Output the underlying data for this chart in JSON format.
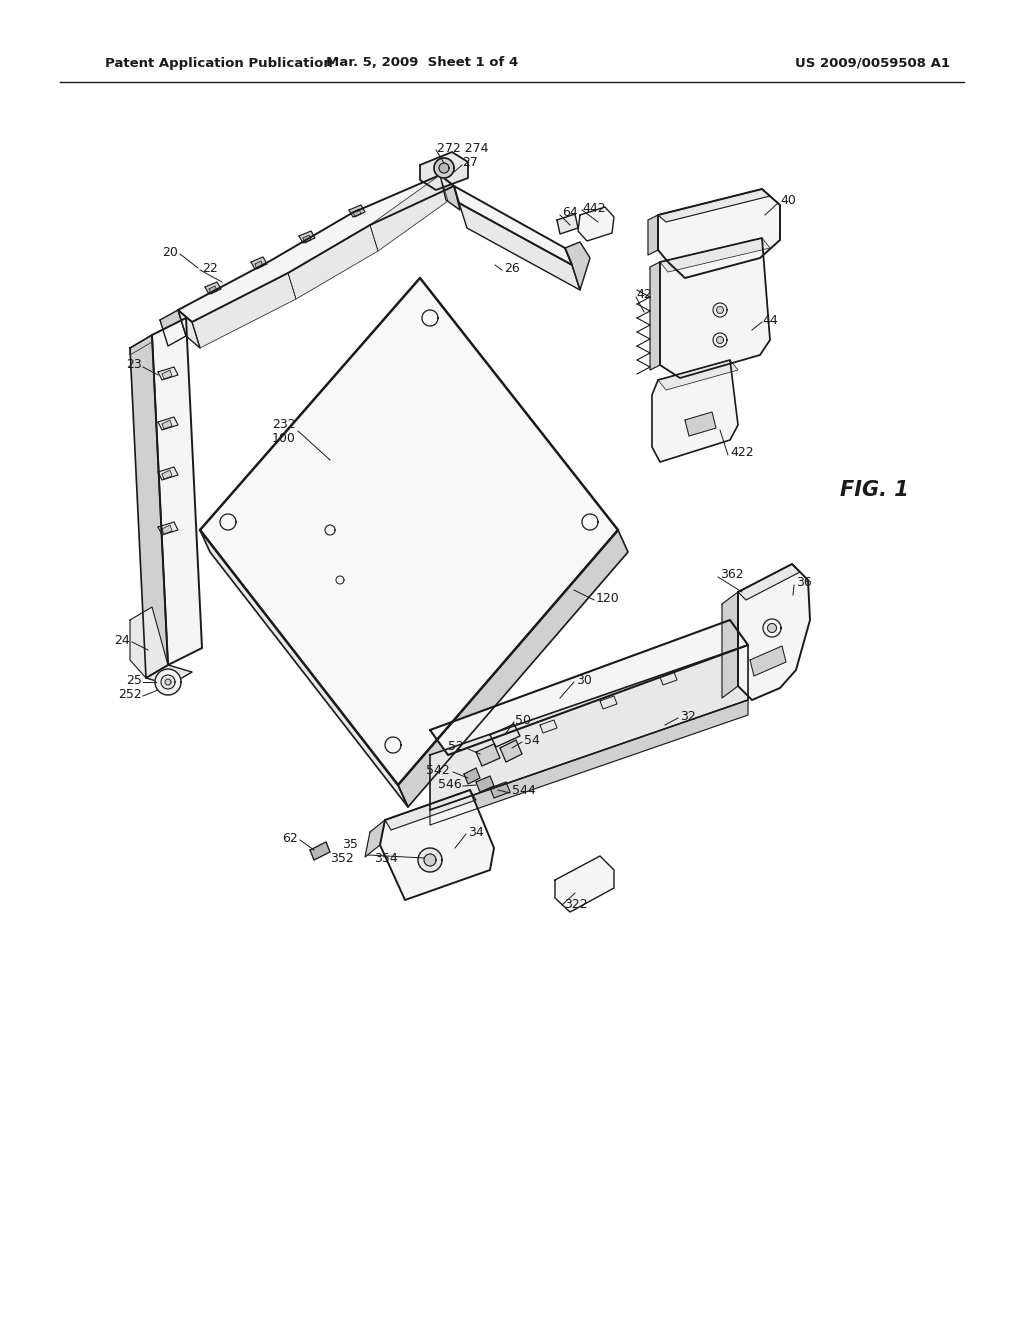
{
  "header_left": "Patent Application Publication",
  "header_mid": "Mar. 5, 2009  Sheet 1 of 4",
  "header_right": "US 2009/0059508 A1",
  "fig_label": "FIG. 1",
  "bg_color": "#ffffff",
  "line_color": "#1a1a1a",
  "fill_light": "#f5f5f5",
  "fill_mid": "#e8e8e8",
  "fill_dark": "#d0d0d0",
  "fill_darker": "#b8b8b8"
}
